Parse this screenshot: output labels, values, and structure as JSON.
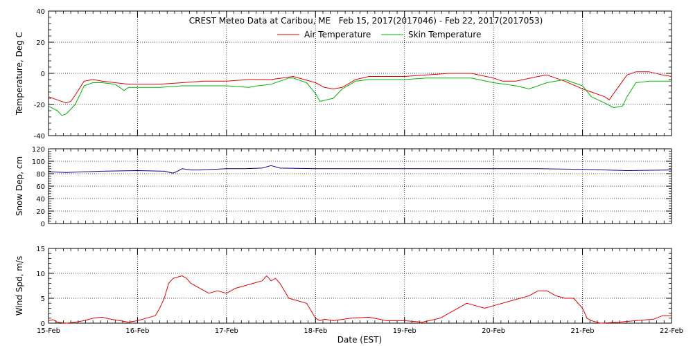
{
  "title": "CREST Meteo Data at Caribou, ME   Feb 15, 2017(2017046) - Feb 22, 2017(2017053)",
  "xlabel": "Date (EST)",
  "x_ticks": [
    "15-Feb",
    "16-Feb",
    "17-Feb",
    "18-Feb",
    "19-Feb",
    "20-Feb",
    "21-Feb",
    "22-Feb"
  ],
  "colors": {
    "air": "#e00000",
    "skin": "#00b400",
    "snow": "#00008b",
    "wind": "#e00000"
  },
  "chart_data": [
    {
      "type": "line",
      "ylabel": "Temperature, Deg C",
      "ylim": [
        -40,
        40
      ],
      "y_ticks": [
        "-40",
        "-20",
        "0",
        "20",
        "40"
      ],
      "xlim": [
        0,
        7
      ],
      "grid": true,
      "legend": "top-center",
      "series": [
        {
          "name": "Air Temperature",
          "color": "#e00000",
          "x": [
            0.0,
            0.1,
            0.2,
            0.25,
            0.3,
            0.4,
            0.5,
            0.6,
            0.75,
            0.9,
            1.0,
            1.25,
            1.5,
            1.75,
            2.0,
            2.25,
            2.5,
            2.75,
            3.0,
            3.1,
            3.2,
            3.3,
            3.45,
            3.6,
            3.75,
            4.0,
            4.25,
            4.5,
            4.75,
            5.0,
            5.1,
            5.25,
            5.5,
            5.6,
            5.8,
            6.0,
            6.1,
            6.25,
            6.3,
            6.4,
            6.5,
            6.6,
            6.75,
            6.9,
            7.0
          ],
          "y": [
            -15,
            -17,
            -19,
            -18,
            -14,
            -5,
            -4,
            -5,
            -6,
            -7,
            -7,
            -7,
            -6,
            -5,
            -5,
            -4,
            -4,
            -2,
            -6,
            -9,
            -10,
            -9,
            -4,
            -2,
            -2,
            -2,
            -1,
            0,
            0,
            -3,
            -5,
            -5,
            -2,
            -1,
            -5,
            -10,
            -12,
            -15,
            -17,
            -9,
            -1,
            1,
            1,
            -1,
            -2
          ]
        },
        {
          "name": "Skin Temperature",
          "color": "#00b400",
          "x": [
            0.0,
            0.1,
            0.15,
            0.2,
            0.3,
            0.4,
            0.5,
            0.6,
            0.75,
            0.85,
            0.9,
            1.0,
            1.25,
            1.5,
            1.75,
            2.0,
            2.25,
            2.35,
            2.5,
            2.7,
            2.75,
            2.9,
            3.0,
            3.05,
            3.2,
            3.3,
            3.45,
            3.6,
            3.75,
            4.0,
            4.25,
            4.5,
            4.75,
            5.0,
            5.25,
            5.4,
            5.6,
            5.8,
            6.0,
            6.1,
            6.25,
            6.35,
            6.45,
            6.5,
            6.6,
            6.75,
            7.0
          ],
          "y": [
            -21,
            -24,
            -27,
            -26,
            -20,
            -8,
            -6,
            -6,
            -7,
            -11,
            -9,
            -9,
            -9,
            -8,
            -8,
            -8,
            -9,
            -8,
            -7,
            -3,
            -3,
            -6,
            -13,
            -18,
            -16,
            -10,
            -5,
            -4,
            -4,
            -4,
            -3,
            -3,
            -3,
            -6,
            -8,
            -10,
            -6,
            -4,
            -8,
            -15,
            -19,
            -22,
            -21,
            -15,
            -6,
            -5,
            -5
          ]
        }
      ]
    },
    {
      "type": "line",
      "ylabel": "Snow Dep, cm",
      "ylim": [
        0,
        120
      ],
      "y_ticks": [
        "0",
        "20",
        "40",
        "60",
        "80",
        "100",
        "120"
      ],
      "xlim": [
        0,
        7
      ],
      "grid": true,
      "series": [
        {
          "color": "#00008b",
          "x": [
            0.0,
            0.2,
            0.4,
            0.6,
            1.0,
            1.3,
            1.4,
            1.45,
            1.5,
            1.6,
            1.7,
            2.0,
            2.2,
            2.4,
            2.5,
            2.6,
            3.0,
            3.5,
            4.0,
            4.5,
            5.0,
            5.5,
            6.0,
            6.5,
            7.0
          ],
          "y": [
            83,
            82,
            83,
            84,
            85,
            84,
            81,
            84,
            88,
            86,
            86,
            88,
            88,
            89,
            93,
            89,
            88,
            88,
            88,
            88,
            88,
            88,
            87,
            85,
            86
          ]
        }
      ]
    },
    {
      "type": "line",
      "ylabel": "Wind Spd, m/s",
      "ylim": [
        0,
        15
      ],
      "y_ticks": [
        "0",
        "5",
        "10",
        "15"
      ],
      "xlim": [
        0,
        7
      ],
      "grid": true,
      "series": [
        {
          "color": "#e00000",
          "x": [
            0.0,
            0.05,
            0.1,
            0.2,
            0.3,
            0.4,
            0.5,
            0.6,
            0.7,
            0.8,
            0.9,
            1.0,
            1.1,
            1.2,
            1.25,
            1.3,
            1.35,
            1.4,
            1.5,
            1.55,
            1.6,
            1.7,
            1.8,
            1.9,
            2.0,
            2.1,
            2.2,
            2.3,
            2.4,
            2.45,
            2.5,
            2.55,
            2.6,
            2.7,
            2.8,
            2.9,
            3.0,
            3.05,
            3.1,
            3.2,
            3.4,
            3.6,
            3.8,
            4.0,
            4.2,
            4.4,
            4.5,
            4.6,
            4.7,
            4.8,
            4.9,
            5.0,
            5.2,
            5.4,
            5.5,
            5.6,
            5.7,
            5.8,
            5.9,
            6.0,
            6.05,
            6.1,
            6.2,
            6.4,
            6.6,
            6.8,
            6.9,
            7.0
          ],
          "y": [
            0.5,
            0.7,
            0.2,
            0.0,
            0.2,
            0.5,
            1.0,
            1.2,
            0.8,
            0.5,
            0.2,
            0.5,
            1.0,
            1.5,
            3.0,
            5.0,
            8.0,
            9.0,
            9.5,
            9.0,
            8.0,
            7.0,
            6.0,
            6.5,
            6.0,
            7.0,
            7.5,
            8.0,
            8.5,
            9.5,
            8.5,
            9.0,
            8.0,
            5.0,
            4.5,
            4.0,
            1.0,
            0.5,
            0.8,
            0.5,
            1.0,
            1.2,
            0.5,
            0.5,
            0.2,
            1.0,
            2.0,
            3.0,
            4.0,
            3.5,
            3.0,
            3.5,
            4.5,
            5.5,
            6.5,
            6.5,
            5.5,
            5.0,
            5.0,
            3.0,
            1.0,
            0.5,
            0.0,
            0.2,
            0.5,
            0.8,
            1.5,
            1.5
          ]
        }
      ]
    }
  ]
}
